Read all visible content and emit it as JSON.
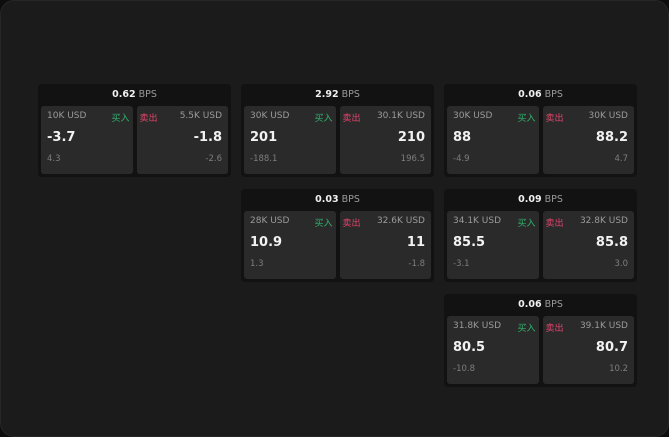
{
  "unit": "BPS",
  "buy_label": "买入",
  "sell_label": "卖出",
  "colors": {
    "buy": "#2fb36b",
    "sell": "#e0446a"
  },
  "cards": [
    {
      "bps": "0.62",
      "bid_size": "10K USD",
      "bid": "-3.7",
      "bid_change": "4.3",
      "ask_size": "5.5K USD",
      "ask": "-1.8",
      "ask_change": "-2.6"
    },
    {
      "bps": "2.92",
      "bid_size": "30K USD",
      "bid": "201",
      "bid_change": "-188.1",
      "ask_size": "30.1K USD",
      "ask": "210",
      "ask_change": "196.5"
    },
    {
      "bps": "0.06",
      "bid_size": "30K USD",
      "bid": "88",
      "bid_change": "-4.9",
      "ask_size": "30K USD",
      "ask": "88.2",
      "ask_change": "4.7"
    },
    {
      "bps": "0.03",
      "bid_size": "28K USD",
      "bid": "10.9",
      "bid_change": "1.3",
      "ask_size": "32.6K USD",
      "ask": "11",
      "ask_change": "-1.8"
    },
    {
      "bps": "0.09",
      "bid_size": "34.1K USD",
      "bid": "85.5",
      "bid_change": "-3.1",
      "ask_size": "32.8K USD",
      "ask": "85.8",
      "ask_change": "3.0"
    },
    {
      "bps": "0.06",
      "bid_size": "31.8K USD",
      "bid": "80.5",
      "bid_change": "-10.8",
      "ask_size": "39.1K USD",
      "ask": "80.7",
      "ask_change": "10.2"
    }
  ]
}
